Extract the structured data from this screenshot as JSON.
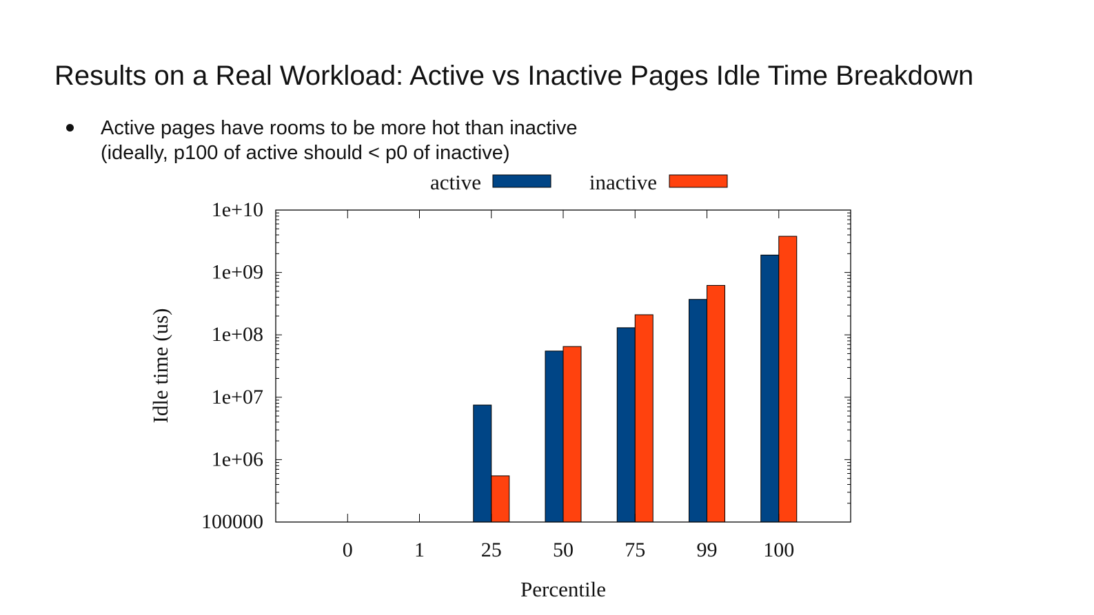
{
  "slide": {
    "title": "Results on a Real Workload: Active vs Inactive Pages Idle Time Breakdown",
    "bullet": {
      "line1": "Active pages have rooms to be more hot than inactive",
      "line2": "(ideally, p100 of active should < p0 of inactive)"
    }
  },
  "chart_data": {
    "type": "bar",
    "title": "",
    "xlabel": "Percentile",
    "ylabel": "Idle time (us)",
    "y_scale": "log",
    "ylim": [
      100000,
      10000000000
    ],
    "yticks": [
      "100000",
      "1e+06",
      "1e+07",
      "1e+08",
      "1e+09",
      "1e+10"
    ],
    "categories": [
      "0",
      "1",
      "25",
      "50",
      "75",
      "99",
      "100"
    ],
    "legend_position": "top-center",
    "grid": false,
    "series": [
      {
        "name": "active",
        "color": "#004586",
        "values": [
          null,
          null,
          7500000,
          55000000,
          130000000,
          370000000,
          1900000000
        ]
      },
      {
        "name": "inactive",
        "color": "#ff420e",
        "values": [
          null,
          null,
          550000,
          65000000,
          210000000,
          620000000,
          3800000000
        ]
      }
    ]
  }
}
